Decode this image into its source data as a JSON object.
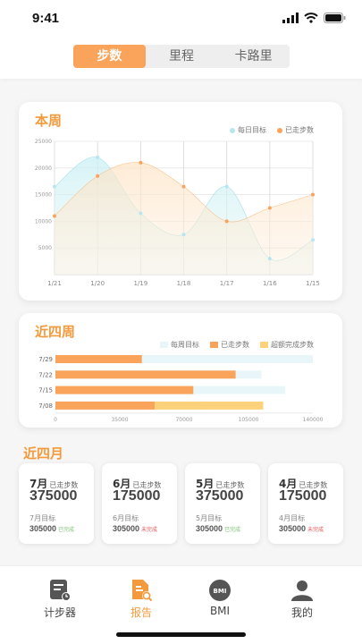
{
  "status": {
    "time": "9:41"
  },
  "segments": [
    {
      "label": "步数",
      "active": true
    },
    {
      "label": "里程",
      "active": false
    },
    {
      "label": "卡路里",
      "active": false
    }
  ],
  "colors": {
    "accent": "#f39a3c",
    "daily_goal": "#b8e6f0",
    "walked": "#f9a45a",
    "exceeded": "#fdd27a",
    "done": "#7cc576",
    "undone": "#e05656"
  },
  "chart_data": [
    {
      "type": "area",
      "title": "本周",
      "legend": [
        "每日目标",
        "已走步数"
      ],
      "legend_position": "top-right",
      "categories": [
        "1/21",
        "1/20",
        "1/19",
        "1/18",
        "1/17",
        "1/16",
        "1/15"
      ],
      "series": [
        {
          "name": "每日目标",
          "values": [
            16500,
            22000,
            11500,
            7500,
            16500,
            3000,
            6500
          ]
        },
        {
          "name": "已走步数",
          "values": [
            11000,
            18500,
            21000,
            16500,
            10000,
            12500,
            15000
          ]
        }
      ],
      "yticks": [
        "25000",
        "20000",
        "15000",
        "10000",
        "5000"
      ],
      "ylim": [
        0,
        25000
      ],
      "grid": true
    },
    {
      "type": "bar",
      "orientation": "horizontal",
      "title": "近四周",
      "legend": [
        "每周目标",
        "已走步数",
        "超额完成步数"
      ],
      "legend_position": "top-right",
      "categories": [
        "7/29",
        "7/22",
        "7/15",
        "7/08"
      ],
      "series": [
        {
          "name": "每周目标",
          "values": [
            140000,
            112000,
            125000,
            80000
          ]
        },
        {
          "name": "已走步数",
          "values": [
            47000,
            98000,
            75000,
            54000
          ]
        },
        {
          "name": "超额完成步数",
          "values": [
            0,
            0,
            0,
            59000
          ]
        }
      ],
      "xticks": [
        "0",
        "35000",
        "70000",
        "105000",
        "140000"
      ],
      "xlim": [
        0,
        140000
      ]
    }
  ],
  "months_title": "近四月",
  "months": [
    {
      "month": "7月",
      "label": "已走步数",
      "value": "375000",
      "goal_label": "7月目标",
      "goal": "305000",
      "status": "已完成",
      "done": true
    },
    {
      "month": "6月",
      "label": "已走步数",
      "value": "175000",
      "goal_label": "6月目标",
      "goal": "305000",
      "status": "未完成",
      "done": false
    },
    {
      "month": "5月",
      "label": "已走步数",
      "value": "375000",
      "goal_label": "5月目标",
      "goal": "305000",
      "status": "已完成",
      "done": true
    },
    {
      "month": "4月",
      "label": "已走步数",
      "value": "175000",
      "goal_label": "4月目标",
      "goal": "305000",
      "status": "未完成",
      "done": false
    }
  ],
  "tabs": [
    {
      "label": "计步器",
      "icon": "pedometer-icon",
      "active": false
    },
    {
      "label": "报告",
      "icon": "report-icon",
      "active": true
    },
    {
      "label": "BMI",
      "icon": "bmi-icon",
      "active": false,
      "badge": "BMI"
    },
    {
      "label": "我的",
      "icon": "profile-icon",
      "active": false
    }
  ]
}
